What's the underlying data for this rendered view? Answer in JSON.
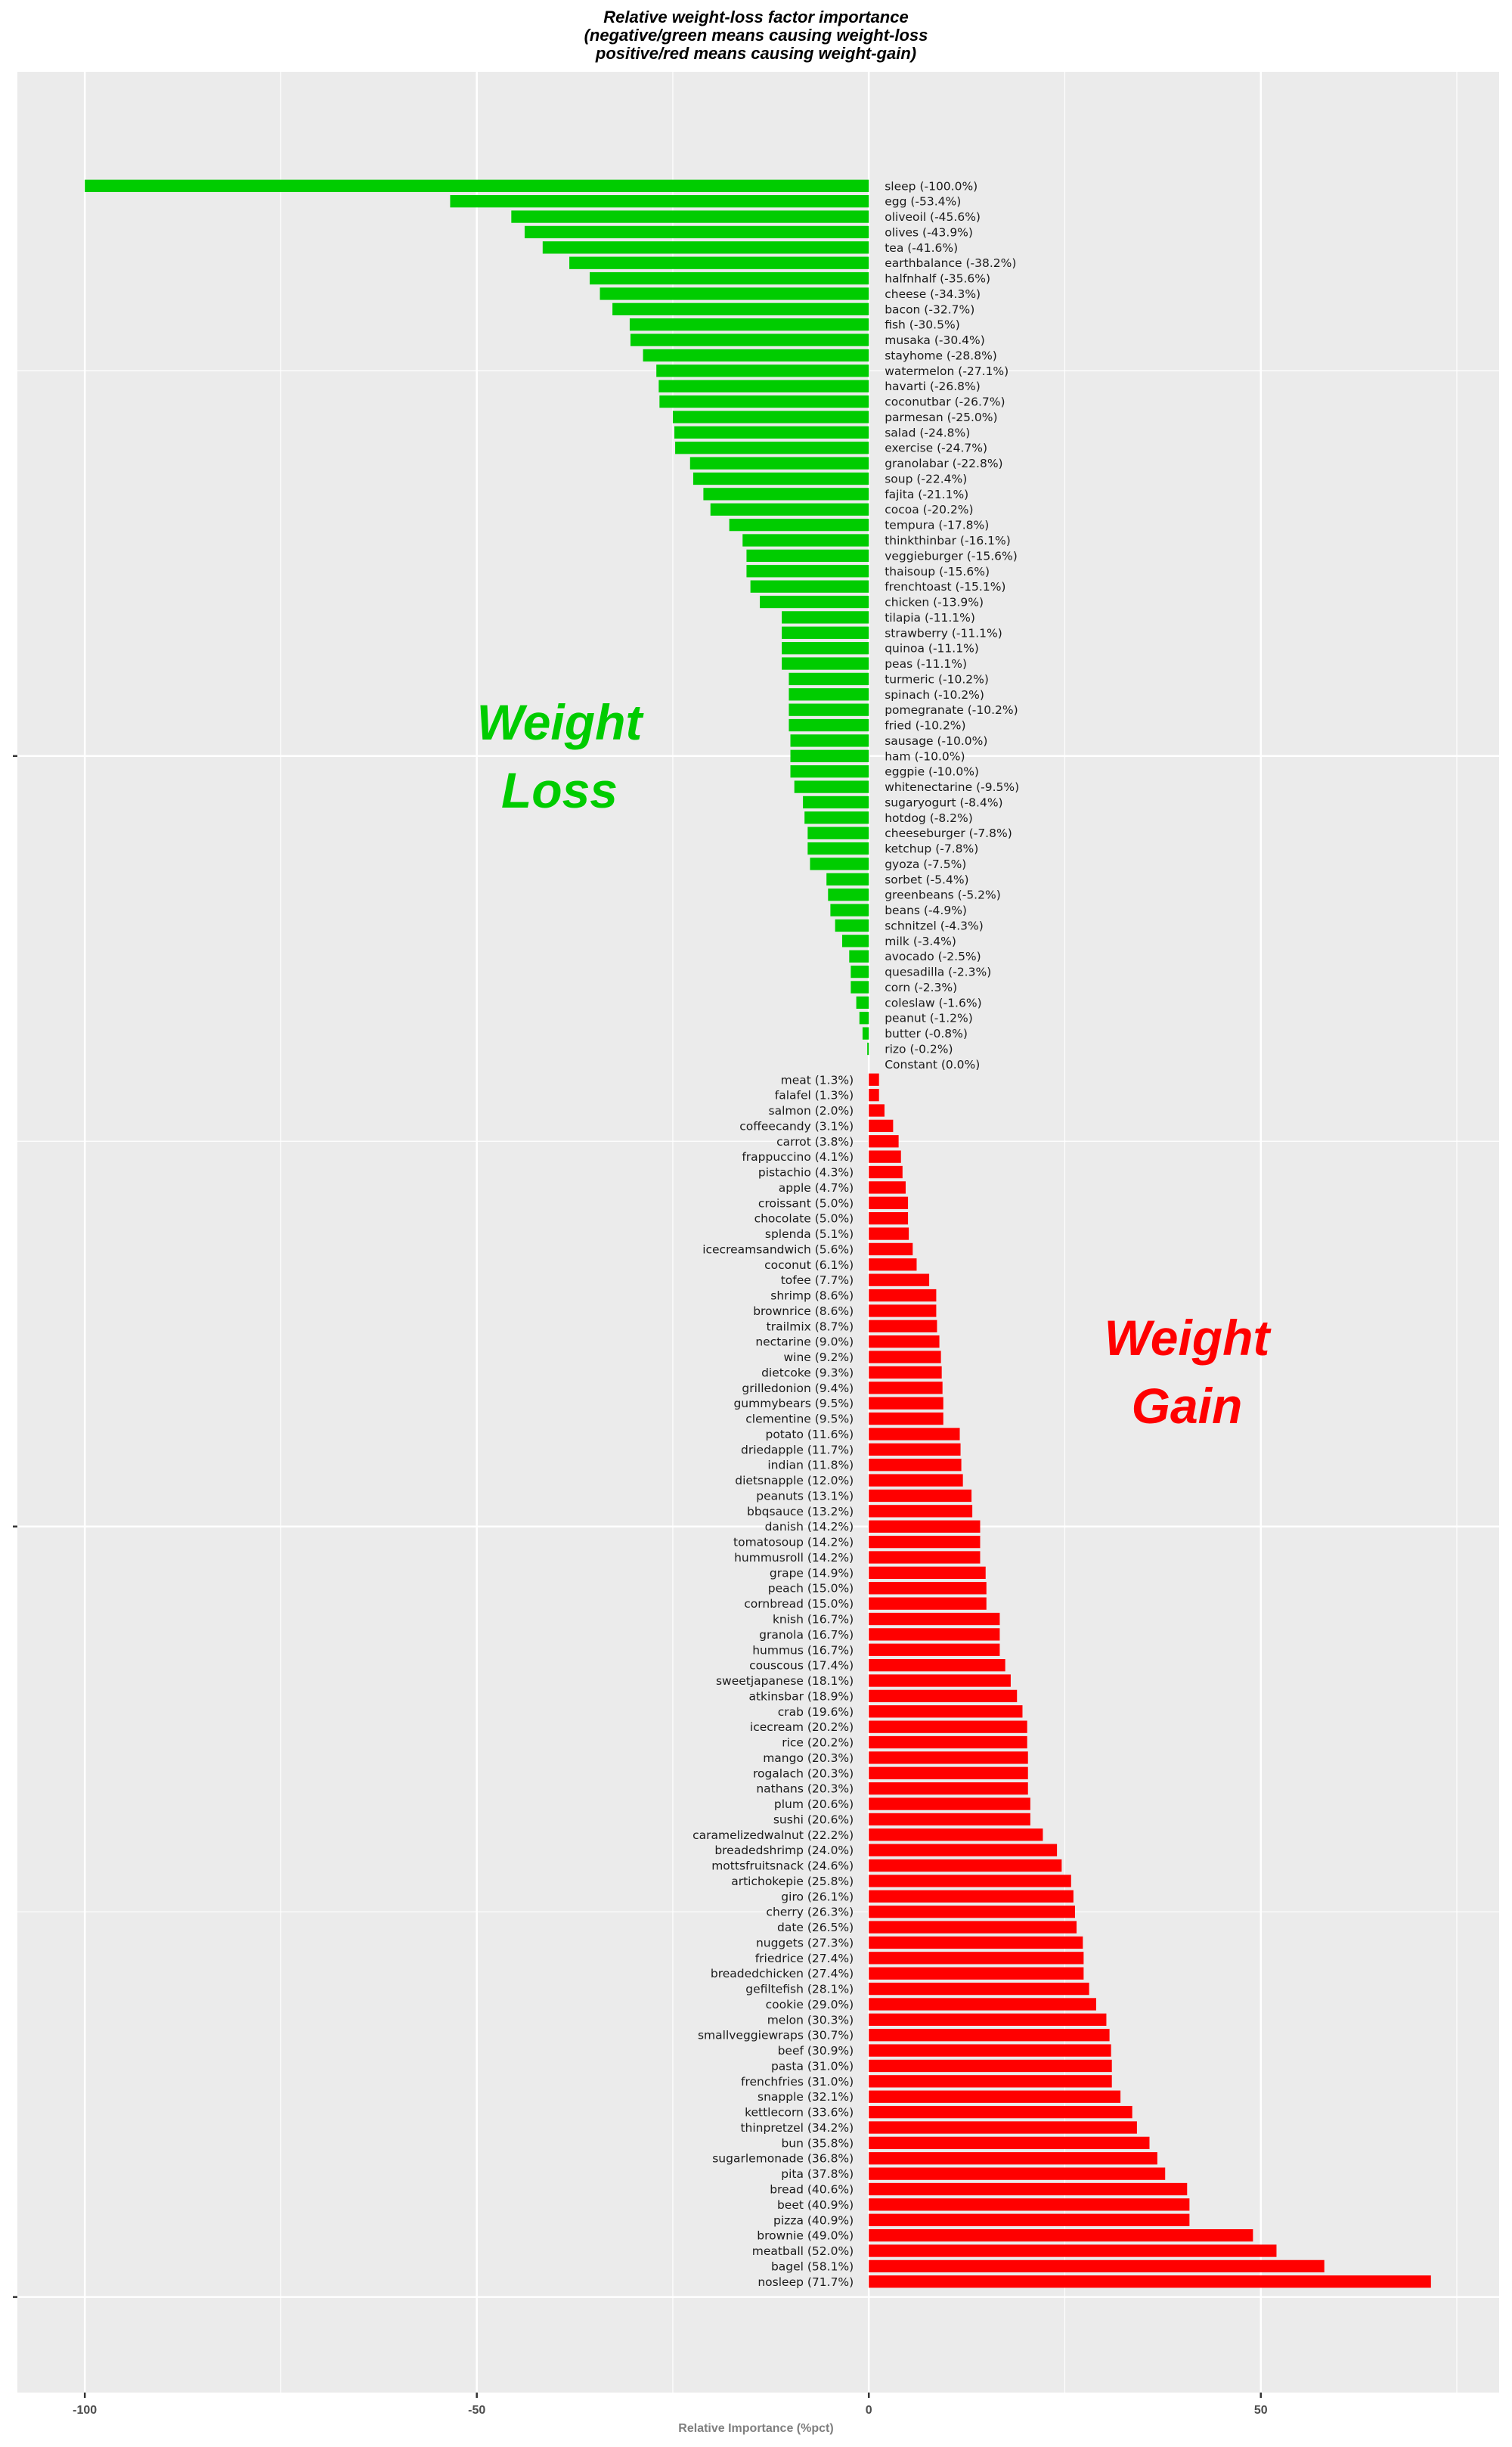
{
  "chart_data": {
    "type": "bar",
    "orientation": "horizontal",
    "title": [
      "Relative weight-loss factor importance",
      "(negative/green means causing weight-loss",
      "positive/red means causing weight-gain)"
    ],
    "xlabel": "Relative Importance (%pct)",
    "ylabel": "",
    "xlim": [
      -108.6,
      80.4
    ],
    "x_ticks": [
      -100,
      -50,
      0,
      50
    ],
    "x_tick_labels": [
      "-100",
      "-50",
      "0",
      "50"
    ],
    "grid": true,
    "colors": {
      "negative": "#00CC00",
      "positive": "#FF0000",
      "panel": "#EBEBEB",
      "grid": "#FFFFFF"
    },
    "annotations": {
      "loss": {
        "lines": [
          "Weight",
          "Loss"
        ],
        "color": "#00CC00"
      },
      "gain": {
        "lines": [
          "Weight",
          "Gain"
        ],
        "color": "#FF0000"
      }
    },
    "categories": [
      "sleep",
      "egg",
      "oliveoil",
      "olives",
      "tea",
      "earthbalance",
      "halfnhalf",
      "cheese",
      "bacon",
      "fish",
      "musaka",
      "stayhome",
      "watermelon",
      "havarti",
      "coconutbar",
      "parmesan",
      "salad",
      "exercise",
      "granolabar",
      "soup",
      "fajita",
      "cocoa",
      "tempura",
      "thinkthinbar",
      "veggieburger",
      "thaisoup",
      "frenchtoast",
      "chicken",
      "tilapia",
      "strawberry",
      "quinoa",
      "peas",
      "turmeric",
      "spinach",
      "pomegranate",
      "fried",
      "sausage",
      "ham",
      "eggpie",
      "whitenectarine",
      "sugaryogurt",
      "hotdog",
      "cheeseburger",
      "ketchup",
      "gyoza",
      "sorbet",
      "greenbeans",
      "beans",
      "schnitzel",
      "milk",
      "avocado",
      "quesadilla",
      "corn",
      "coleslaw",
      "peanut",
      "butter",
      "rizo",
      "Constant",
      "meat",
      "falafel",
      "salmon",
      "coffeecandy",
      "carrot",
      "frappuccino",
      "pistachio",
      "apple",
      "croissant",
      "chocolate",
      "splenda",
      "icecreamsandwich",
      "coconut",
      "tofee",
      "shrimp",
      "brownrice",
      "trailmix",
      "nectarine",
      "wine",
      "dietcoke",
      "grilledonion",
      "gummybears",
      "clementine",
      "potato",
      "driedapple",
      "indian",
      "dietsnapple",
      "peanuts",
      "bbqsauce",
      "danish",
      "tomatosoup",
      "hummusroll",
      "grape",
      "peach",
      "cornbread",
      "knish",
      "granola",
      "hummus",
      "couscous",
      "sweetjapanese",
      "atkinsbar",
      "crab",
      "icecream",
      "rice",
      "mango",
      "rogalach",
      "nathans",
      "plum",
      "sushi",
      "caramelizedwalnut",
      "breadedshrimp",
      "mottsfruitsnack",
      "artichokepie",
      "giro",
      "cherry",
      "date",
      "nuggets",
      "friedrice",
      "breadedchicken",
      "gefiltefish",
      "cookie",
      "melon",
      "smallveggiewraps",
      "beef",
      "pasta",
      "frenchfries",
      "snapple",
      "kettlecorn",
      "thinpretzel",
      "bun",
      "sugarlemonade",
      "pita",
      "bread",
      "beet",
      "pizza",
      "brownie",
      "meatball",
      "bagel",
      "nosleep"
    ],
    "values": [
      -100.0,
      -53.4,
      -45.6,
      -43.9,
      -41.6,
      -38.2,
      -35.6,
      -34.3,
      -32.7,
      -30.5,
      -30.4,
      -28.8,
      -27.1,
      -26.8,
      -26.7,
      -25.0,
      -24.8,
      -24.7,
      -22.8,
      -22.4,
      -21.1,
      -20.2,
      -17.8,
      -16.1,
      -15.6,
      -15.6,
      -15.1,
      -13.9,
      -11.1,
      -11.1,
      -11.1,
      -11.1,
      -10.2,
      -10.2,
      -10.2,
      -10.2,
      -10.0,
      -10.0,
      -10.0,
      -9.5,
      -8.4,
      -8.2,
      -7.8,
      -7.8,
      -7.5,
      -5.4,
      -5.2,
      -4.9,
      -4.3,
      -3.4,
      -2.5,
      -2.3,
      -2.3,
      -1.6,
      -1.2,
      -0.8,
      -0.2,
      0.0,
      1.3,
      1.3,
      2.0,
      3.1,
      3.8,
      4.1,
      4.3,
      4.7,
      5.0,
      5.0,
      5.1,
      5.6,
      6.1,
      7.7,
      8.6,
      8.6,
      8.7,
      9.0,
      9.2,
      9.3,
      9.4,
      9.5,
      9.5,
      11.6,
      11.7,
      11.8,
      12.0,
      13.1,
      13.2,
      14.2,
      14.2,
      14.2,
      14.9,
      15.0,
      15.0,
      16.7,
      16.7,
      16.7,
      17.4,
      18.1,
      18.9,
      19.6,
      20.2,
      20.2,
      20.3,
      20.3,
      20.3,
      20.6,
      20.6,
      22.2,
      24.0,
      24.6,
      25.8,
      26.1,
      26.3,
      26.5,
      27.3,
      27.4,
      27.4,
      28.1,
      29.0,
      30.3,
      30.7,
      30.9,
      31.0,
      31.0,
      32.1,
      33.6,
      34.2,
      35.8,
      36.8,
      37.8,
      40.6,
      40.9,
      40.9,
      49.0,
      52.0,
      58.1,
      71.7
    ]
  }
}
